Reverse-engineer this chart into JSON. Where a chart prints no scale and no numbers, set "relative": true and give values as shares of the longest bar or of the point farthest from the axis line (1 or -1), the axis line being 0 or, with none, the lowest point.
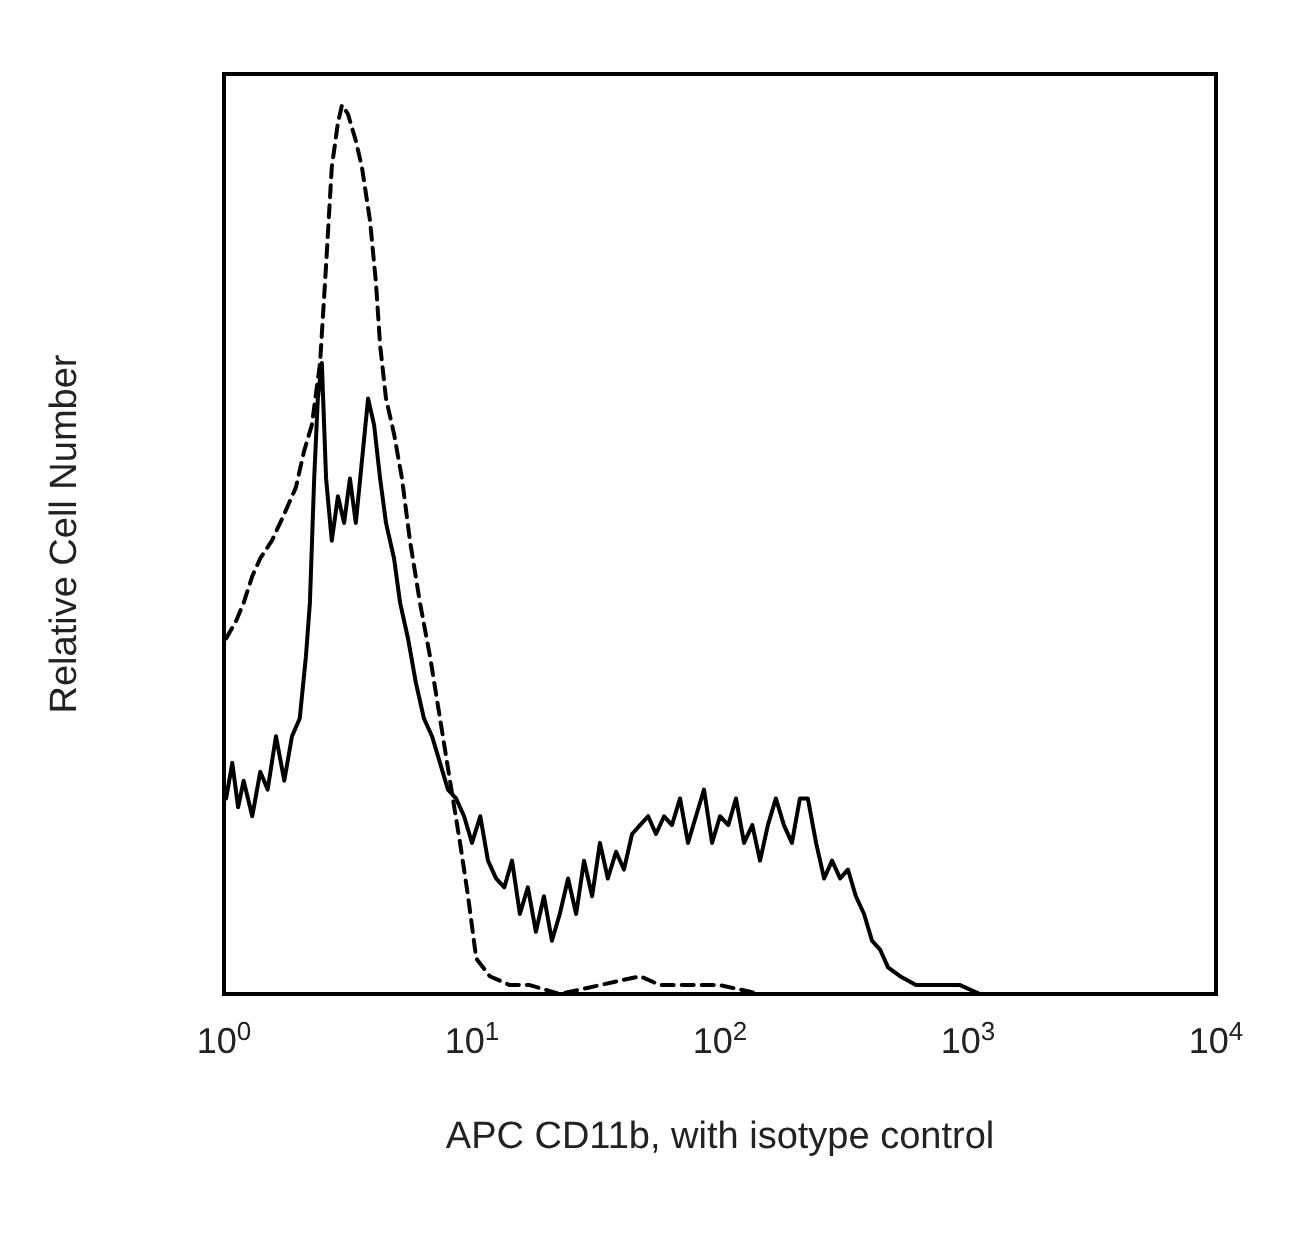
{
  "chart_data": {
    "type": "line",
    "relative": true,
    "log": "x",
    "xlabel": "APC CD11b, with isotype control",
    "ylabel": "Relative Cell Number",
    "xlim": [
      1,
      10000
    ],
    "xticks": [
      {
        "value": 1,
        "label": "10$^{0}$"
      },
      {
        "value": 10,
        "label": "10$^{1}$"
      },
      {
        "value": 100,
        "label": "10$^{2}$"
      },
      {
        "value": 1000,
        "label": "10$^{3}$"
      },
      {
        "value": 10000,
        "label": "10$^{4}$"
      }
    ],
    "grid": false,
    "marker": "none",
    "series": [
      {
        "color": "#000000",
        "line_style": "solid",
        "x": [
          1.02,
          1.08,
          1.14,
          1.2,
          1.3,
          1.4,
          1.5,
          1.62,
          1.75,
          1.88,
          2.02,
          2.14,
          2.22,
          2.31,
          2.39,
          2.48,
          2.58,
          2.72,
          2.88,
          3.05,
          3.22,
          3.4,
          3.6,
          3.81,
          4.03,
          4.26,
          4.5,
          4.85,
          5.13,
          5.52,
          5.94,
          6.4,
          6.9,
          7.43,
          8.0,
          8.62,
          9.29,
          10,
          10.8,
          11.6,
          12.5,
          13.5,
          14.5,
          15.6,
          16.8,
          18.1,
          19.5,
          21,
          22.6,
          24.4,
          26.3,
          28.3,
          30.5,
          32.8,
          35.3,
          38.1,
          41,
          44.2,
          47.6,
          51.3,
          55.2,
          59.5,
          64,
          69,
          74.3,
          80,
          86.2,
          92.9,
          100,
          108,
          116,
          125,
          135,
          145,
          156,
          168,
          181,
          195,
          210,
          226,
          244,
          263,
          283,
          305,
          328,
          353,
          381,
          410,
          442,
          476,
          532,
          617,
          771,
          929,
          1117
        ],
        "values": [
          0.22,
          0.26,
          0.21,
          0.24,
          0.2,
          0.25,
          0.23,
          0.29,
          0.24,
          0.29,
          0.31,
          0.38,
          0.44,
          0.58,
          0.67,
          0.71,
          0.58,
          0.51,
          0.56,
          0.53,
          0.58,
          0.53,
          0.6,
          0.67,
          0.64,
          0.58,
          0.53,
          0.49,
          0.44,
          0.4,
          0.35,
          0.31,
          0.29,
          0.26,
          0.23,
          0.22,
          0.2,
          0.17,
          0.2,
          0.15,
          0.13,
          0.12,
          0.15,
          0.09,
          0.12,
          0.07,
          0.11,
          0.06,
          0.09,
          0.13,
          0.09,
          0.15,
          0.11,
          0.17,
          0.13,
          0.16,
          0.14,
          0.18,
          0.19,
          0.2,
          0.18,
          0.2,
          0.19,
          0.22,
          0.17,
          0.2,
          0.23,
          0.17,
          0.2,
          0.19,
          0.22,
          0.17,
          0.19,
          0.15,
          0.19,
          0.22,
          0.19,
          0.17,
          0.22,
          0.22,
          0.17,
          0.13,
          0.15,
          0.13,
          0.14,
          0.11,
          0.09,
          0.06,
          0.05,
          0.03,
          0.02,
          0.01,
          0.01,
          0.01,
          0
        ]
      },
      {
        "color": "#000000",
        "line_style": "dashed",
        "x": [
          1.02,
          1.12,
          1.2,
          1.3,
          1.4,
          1.56,
          1.75,
          1.95,
          2.1,
          2.26,
          2.44,
          2.58,
          2.72,
          2.88,
          2.99,
          3.16,
          3.4,
          3.6,
          3.88,
          4.1,
          4.26,
          4.5,
          4.85,
          5.22,
          5.62,
          6.17,
          6.77,
          7.43,
          8.15,
          8.95,
          9.64,
          10.4,
          11.8,
          14.2,
          17.1,
          22.6,
          32.8,
          47.6,
          57.3,
          100,
          145,
          210
        ],
        "values": [
          0.4,
          0.42,
          0.44,
          0.47,
          0.49,
          0.51,
          0.54,
          0.57,
          0.61,
          0.64,
          0.71,
          0.82,
          0.93,
          0.98,
          1,
          0.99,
          0.96,
          0.93,
          0.87,
          0.8,
          0.73,
          0.67,
          0.63,
          0.58,
          0.51,
          0.44,
          0.38,
          0.31,
          0.24,
          0.17,
          0.11,
          0.04,
          0.02,
          0.01,
          0.01,
          0,
          0.01,
          0.02,
          0.01,
          0.01,
          0,
          0
        ]
      }
    ]
  }
}
